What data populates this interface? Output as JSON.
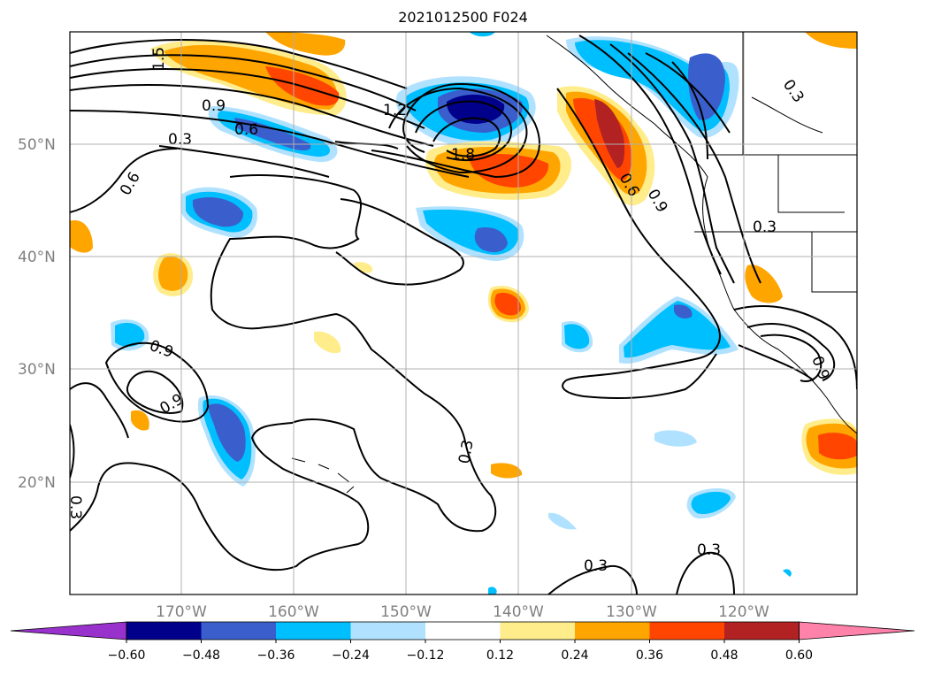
{
  "title": "2021012500 F024",
  "latitude_labels": [
    "50°N",
    "40°N",
    "30°N",
    "20°N"
  ],
  "longitude_labels": [
    "170°W",
    "160°W",
    "150°W",
    "140°W",
    "130°W",
    "120°W"
  ],
  "colorbar": {
    "tick_labels": [
      "−0.60",
      "−0.48",
      "−0.36",
      "−0.24",
      "−0.12",
      "0.12",
      "0.24",
      "0.36",
      "0.48",
      "0.60"
    ],
    "colors": [
      "#9932cc",
      "#00008b",
      "#3a5fcd",
      "#00bfff",
      "#b0e2ff",
      "#ffffff",
      "#ffec8b",
      "#ffa500",
      "#ff4500",
      "#b22222",
      "#ff82ab"
    ]
  },
  "contour_labels": [
    "1.5",
    "0.9",
    "0.6",
    "0.3",
    "1.2",
    "1.8",
    "0.6",
    "0.9",
    "0.3",
    "0.6",
    "0.9",
    "0.3",
    "0.3",
    "0.9",
    "0.3",
    "0.3",
    "0.3",
    "0.9"
  ]
}
